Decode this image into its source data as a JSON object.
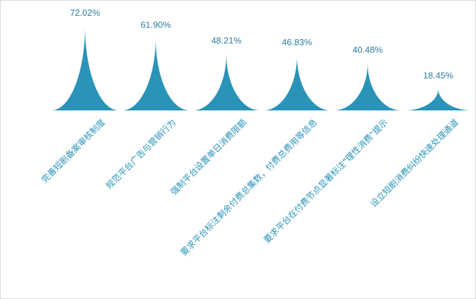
{
  "chart_data": {
    "type": "bar",
    "title": "",
    "xlabel": "",
    "ylabel": "",
    "ylim": [
      0,
      72.02
    ],
    "categories": [
      "完善短剧备案审核制度",
      "规范平台广告与营销行为",
      "强制平台设置单日消费限额",
      "要求平台标注剩余付费总集数，付费总费用等信息",
      "要求平台在付费节点显著标注\"理性消费\"提示",
      "设立短剧消费纠纷快速处理通道"
    ],
    "values": [
      72.02,
      61.9,
      48.21,
      46.83,
      40.48,
      18.45
    ],
    "value_labels": [
      "72.02%",
      "61.90%",
      "48.21%",
      "46.83%",
      "40.48%",
      "18.45%"
    ],
    "grid": false,
    "legend": "none",
    "colors": {
      "bar": "#2a93b8",
      "value_text": "#2e7da0",
      "category_text": "#2a93b8",
      "border": "#d9d9d9"
    }
  }
}
